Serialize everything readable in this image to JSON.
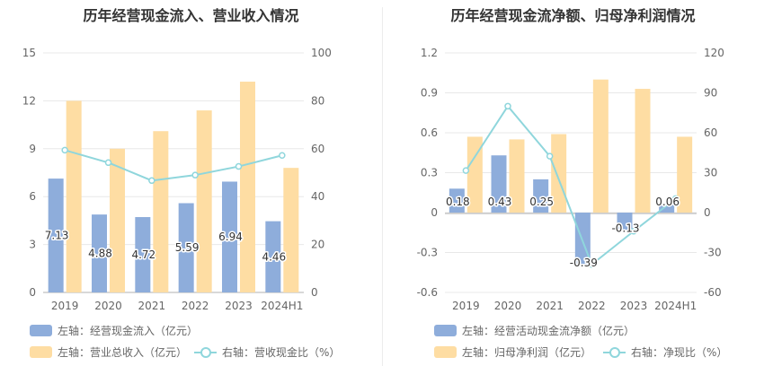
{
  "chart_data": [
    {
      "type": "bar",
      "title": "历年经营现金流入、营业收入情况",
      "categories": [
        "2019",
        "2020",
        "2021",
        "2022",
        "2023",
        "2024H1"
      ],
      "left_axis": {
        "ticks": [
          "0",
          "3",
          "6",
          "9",
          "12",
          "15"
        ],
        "ylim": [
          0,
          15
        ]
      },
      "right_axis": {
        "ticks": [
          "0",
          "20",
          "40",
          "60",
          "80",
          "100"
        ],
        "ylim": [
          0,
          100
        ]
      },
      "grid": true,
      "legend_placement": "bottom-left",
      "series": [
        {
          "name": "左轴：经营现金流入（亿元）",
          "type": "bar",
          "axis": "left",
          "color": "#8eaddb",
          "values": [
            7.13,
            4.88,
            4.72,
            5.59,
            6.94,
            4.46
          ],
          "labels": [
            "7.13",
            "4.88",
            "4.72",
            "5.59",
            "6.94",
            "4.46"
          ]
        },
        {
          "name": "左轴：营业总收入（亿元）",
          "type": "bar",
          "axis": "left",
          "color": "#fedda3",
          "values": [
            12.0,
            9.0,
            10.1,
            11.4,
            13.2,
            7.8
          ]
        },
        {
          "name": "右轴：营收现金比（%）",
          "type": "line",
          "axis": "right",
          "color": "#8fd6dc",
          "values": [
            59.4,
            54.2,
            46.7,
            49.0,
            52.6,
            57.2
          ]
        }
      ]
    },
    {
      "type": "bar",
      "title": "历年经营现金流净额、归母净利润情况",
      "categories": [
        "2019",
        "2020",
        "2021",
        "2022",
        "2023",
        "2024H1"
      ],
      "left_axis": {
        "ticks": [
          "-0.6",
          "-0.3",
          "0",
          "0.3",
          "0.6",
          "0.9",
          "1.2"
        ],
        "ylim": [
          -0.6,
          1.2
        ]
      },
      "right_axis": {
        "ticks": [
          "-60",
          "-30",
          "0",
          "30",
          "60",
          "90",
          "120"
        ],
        "ylim": [
          -60,
          120
        ]
      },
      "grid": true,
      "legend_placement": "bottom-left",
      "series": [
        {
          "name": "左轴：经营活动现金流净额（亿元）",
          "type": "bar",
          "axis": "left",
          "color": "#8eaddb",
          "values": [
            0.18,
            0.43,
            0.25,
            -0.39,
            -0.13,
            0.06
          ],
          "labels": [
            "0.18",
            "0.43",
            "0.25",
            "-0.39",
            "-0.13",
            "0.06"
          ]
        },
        {
          "name": "左轴：归母净利润（亿元）",
          "type": "bar",
          "axis": "left",
          "color": "#fedda3",
          "values": [
            0.57,
            0.55,
            0.59,
            1.0,
            0.93,
            0.57
          ]
        },
        {
          "name": "右轴：净现比（%）",
          "type": "line",
          "axis": "right",
          "color": "#8fd6dc",
          "values": [
            31.6,
            80.0,
            42.4,
            -39.0,
            -14.0,
            10.5
          ]
        }
      ]
    }
  ]
}
